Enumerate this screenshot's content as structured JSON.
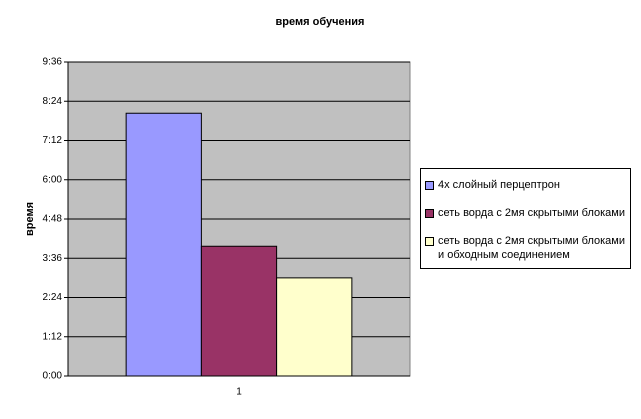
{
  "chart_data": {
    "type": "bar",
    "title": "время обучения",
    "y_label": "время",
    "categories": [
      "1"
    ],
    "series": [
      {
        "name": "4х слойный перцептрон",
        "color": "#9999ff",
        "values": [
          482
        ]
      },
      {
        "name": "сеть ворда с 2мя скрытыми блоками",
        "color": "#993366",
        "values": [
          238
        ]
      },
      {
        "name": "сеть ворда с 2мя скрытыми блоками и обходным соединением",
        "color": "#ffffcc",
        "values": [
          180
        ]
      }
    ],
    "ylim": [
      0,
      576
    ],
    "yticks": [
      {
        "value": 0,
        "label": "0:00"
      },
      {
        "value": 72,
        "label": "1:12"
      },
      {
        "value": 144,
        "label": "2:24"
      },
      {
        "value": 216,
        "label": "3:36"
      },
      {
        "value": 288,
        "label": "4:48"
      },
      {
        "value": 360,
        "label": "6:00"
      },
      {
        "value": 432,
        "label": "7:12"
      },
      {
        "value": 504,
        "label": "8:24"
      },
      {
        "value": 576,
        "label": "9:36"
      }
    ],
    "grid": true,
    "plot_background": "#c0c0c0",
    "legend": "right"
  }
}
